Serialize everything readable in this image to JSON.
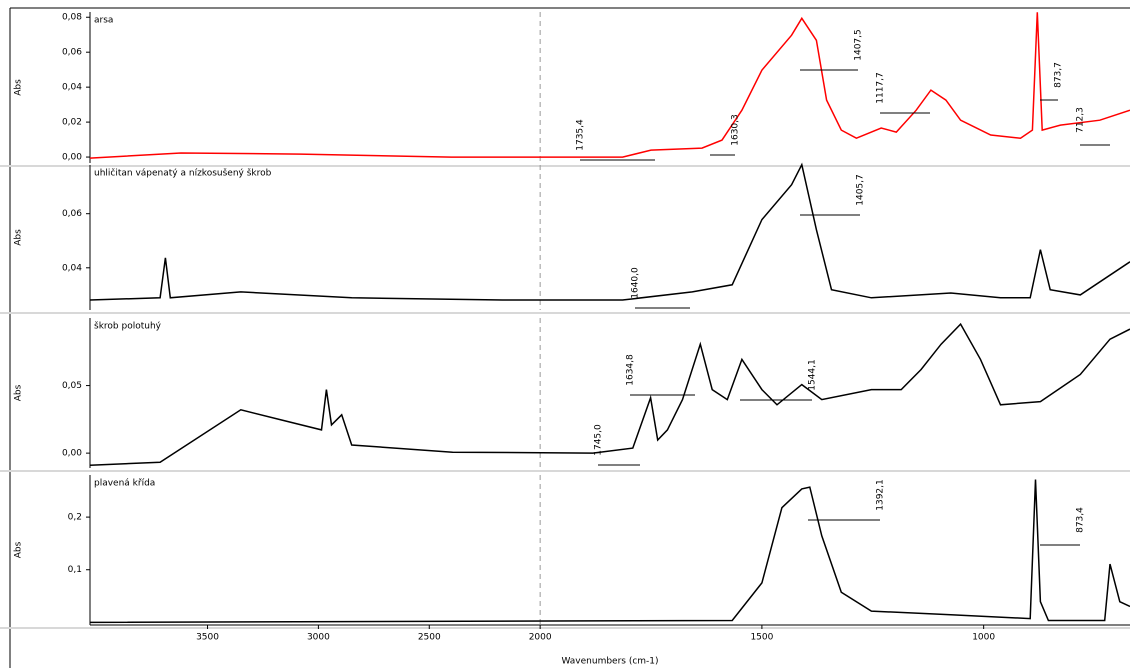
{
  "chart_data": [
    {
      "type": "line",
      "title": "arsa",
      "ylabel": "Abs",
      "color": "#ff0000",
      "xlim": [
        4030,
        670
      ],
      "x_break": 2000,
      "x_break_factor": 2,
      "ylim": [
        -0.0034,
        0.083
      ],
      "yticks": [
        {
          "value": 0,
          "label": "0,00"
        },
        {
          "value": 0.02,
          "label": "0,02"
        },
        {
          "value": 0.04,
          "label": "0,04"
        },
        {
          "value": 0.06,
          "label": "0,06"
        },
        {
          "value": 0.08,
          "label": "0,08"
        }
      ],
      "x": [
        4030,
        3620,
        3080,
        2400,
        1814,
        1750,
        1635,
        1590,
        1545,
        1500,
        1433,
        1410,
        1377,
        1354,
        1321,
        1287,
        1231,
        1197,
        1152,
        1119,
        1085,
        1052,
        984,
        917,
        890,
        879,
        868,
        827,
        738,
        670
      ],
      "values": [
        -0.0006,
        0.0023,
        0.0017,
        0,
        0,
        0.004,
        0.0051,
        0.0097,
        0.0268,
        0.0497,
        0.0697,
        0.0794,
        0.0668,
        0.0326,
        0.0154,
        0.0108,
        0.0166,
        0.0143,
        0.0268,
        0.0383,
        0.0326,
        0.0211,
        0.0126,
        0.0108,
        0.0154,
        0.0828,
        0.0154,
        0.0183,
        0.0211,
        0.0268
      ],
      "annotations": [
        "1735,4",
        "1630,3",
        "1407,5",
        "1117,7",
        "873,7",
        "712,3"
      ]
    },
    {
      "type": "line",
      "title": "uhličitan vápenatý a nízkosušený škrob",
      "ylabel": "Abs",
      "color": "#000000",
      "xlim": [
        4030,
        670
      ],
      "x_break": 2000,
      "x_break_factor": 2,
      "ylim": [
        0.0244,
        0.078
      ],
      "yticks": [
        {
          "value": 0.04,
          "label": "0,04"
        },
        {
          "value": 0.06,
          "label": "0,06"
        }
      ],
      "x": [
        4030,
        3714,
        3690,
        3668,
        3350,
        2850,
        2170,
        1814,
        1657,
        1567,
        1500,
        1433,
        1410,
        1377,
        1343,
        1253,
        1074,
        962,
        895,
        872,
        850,
        782,
        670
      ],
      "values": [
        0.0281,
        0.0289,
        0.0437,
        0.0289,
        0.0311,
        0.0289,
        0.0281,
        0.0281,
        0.0311,
        0.0337,
        0.0578,
        0.0707,
        0.0781,
        0.0541,
        0.0319,
        0.0289,
        0.0307,
        0.0289,
        0.0289,
        0.0467,
        0.0319,
        0.03,
        0.0422
      ],
      "annotations": [
        "1640,0",
        "1405,7"
      ]
    },
    {
      "type": "line",
      "title": "škrob polotuhý",
      "ylabel": "Abs",
      "color": "#000000",
      "xlim": [
        4030,
        670
      ],
      "x_break": 2000,
      "x_break_factor": 2,
      "ylim": [
        -0.011,
        0.1
      ],
      "yticks": [
        {
          "value": 0,
          "label": "0,00"
        },
        {
          "value": 0.05,
          "label": "0,05"
        }
      ],
      "x": [
        4030,
        3714,
        3350,
        3168,
        2986,
        2964,
        2941,
        2895,
        2850,
        2395,
        1881,
        1791,
        1751,
        1735,
        1713,
        1679,
        1639,
        1612,
        1578,
        1545,
        1500,
        1466,
        1410,
        1365,
        1253,
        1186,
        1141,
        1096,
        1052,
        1007,
        962,
        872,
        782,
        715,
        670
      ],
      "values": [
        -0.009,
        -0.0067,
        0.0321,
        0.0246,
        0.0172,
        0.047,
        0.0209,
        0.0284,
        0.006,
        0.0007,
        0,
        0.0037,
        0.041,
        0.0097,
        0.0172,
        0.0396,
        0.0806,
        0.047,
        0.0396,
        0.0694,
        0.047,
        0.0358,
        0.0507,
        0.0396,
        0.047,
        0.047,
        0.0619,
        0.0806,
        0.0955,
        0.0694,
        0.0358,
        0.0381,
        0.0582,
        0.0843,
        0.0918
      ],
      "annotations": [
        "1745,0",
        "1634,8",
        "1544,1"
      ]
    },
    {
      "type": "line",
      "title": "plavená křída",
      "ylabel": "Abs",
      "color": "#000000",
      "xlim": [
        4030,
        670
      ],
      "x_break": 2000,
      "x_break_factor": 2,
      "ylim": [
        -0.005,
        0.28
      ],
      "yticks": [
        {
          "value": 0.1,
          "label": "0,1"
        },
        {
          "value": 0.2,
          "label": "0,2"
        }
      ],
      "xticks": [
        3500,
        3000,
        2500,
        2000,
        1500,
        1000
      ],
      "xlabel": "Wavenumbers (cm-1)",
      "x": [
        4030,
        1567,
        1500,
        1455,
        1410,
        1392,
        1365,
        1321,
        1253,
        1074,
        895,
        883,
        872,
        854,
        727,
        715,
        693,
        670
      ],
      "values": [
        0,
        0.0036,
        0.075,
        0.2179,
        0.2536,
        0.2571,
        0.1643,
        0.0571,
        0.0214,
        0.0143,
        0.0071,
        0.2714,
        0.0393,
        0.0036,
        0.0036,
        0.1107,
        0.0393,
        0.0304
      ],
      "annotations": [
        "1392,1",
        "873,4"
      ]
    }
  ]
}
